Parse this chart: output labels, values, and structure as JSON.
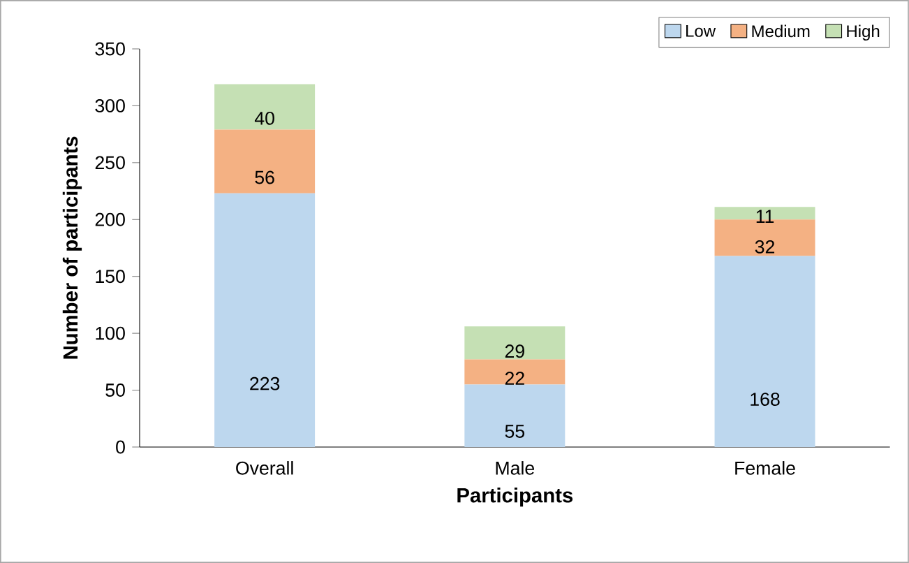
{
  "chart_data": {
    "type": "bar",
    "stacked": true,
    "xlabel": "Participants",
    "ylabel": "Number of participants",
    "categories": [
      "Overall",
      "Male",
      "Female"
    ],
    "series": [
      {
        "name": "Low",
        "color": "#bdd7ee",
        "values": [
          223,
          55,
          168
        ]
      },
      {
        "name": "Medium",
        "color": "#f4b183",
        "values": [
          56,
          22,
          32
        ]
      },
      {
        "name": "High",
        "color": "#c5e0b4",
        "values": [
          40,
          29,
          11
        ]
      }
    ],
    "ylim": [
      0,
      350
    ],
    "yticks": [
      0,
      50,
      100,
      150,
      200,
      250,
      300,
      350
    ],
    "data_labels": true,
    "legend": "top right",
    "grid": false
  }
}
